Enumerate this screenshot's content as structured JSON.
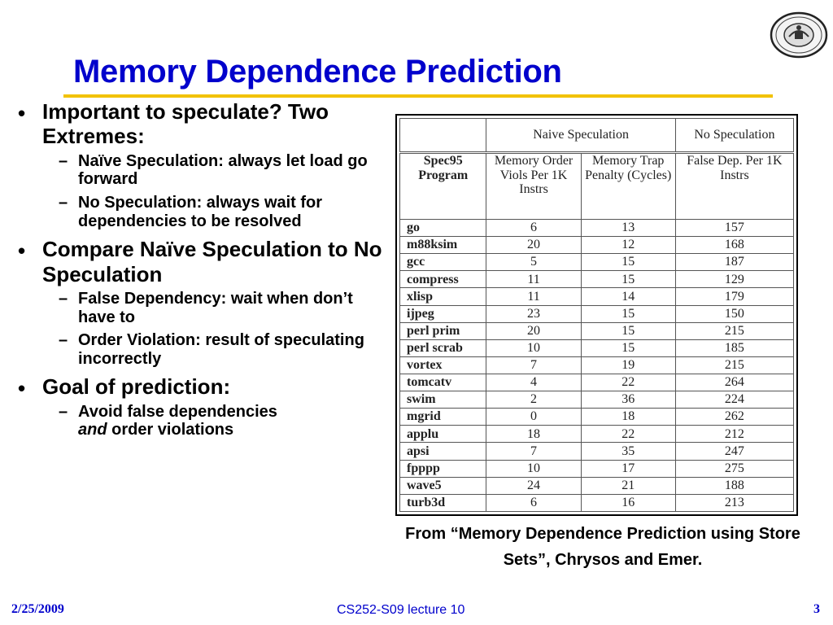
{
  "slide": {
    "title": "Memory Dependence Prediction",
    "bullets": [
      {
        "text": "Important to speculate? Two Extremes:",
        "subs": [
          {
            "text": "Naïve Speculation: always let load go forward"
          },
          {
            "text": "No Speculation: always wait for dependencies to be resolved"
          }
        ]
      },
      {
        "text": "Compare Naïve Speculation to No Speculation",
        "subs": [
          {
            "text": "False Dependency: wait when don’t have to"
          },
          {
            "text": "Order Violation: result of speculating incorrectly"
          }
        ]
      },
      {
        "text": "Goal of prediction:",
        "subs": [
          {
            "prefix": "Avoid false dependencies",
            "em": "and",
            "suffix": " order violations"
          }
        ]
      }
    ],
    "caption": "From “Memory Dependence Prediction using Store Sets”, Chrysos and Emer."
  },
  "table": {
    "group_headers": [
      "",
      "Naive Speculation",
      "No Speculation"
    ],
    "col_headers": [
      "Spec95 Program",
      "Memory Order Viols Per 1K Instrs",
      "Memory Trap Penalty (Cycles)",
      "False Dep. Per 1K Instrs"
    ],
    "rows": [
      [
        "go",
        "6",
        "13",
        "157"
      ],
      [
        "m88ksim",
        "20",
        "12",
        "168"
      ],
      [
        "gcc",
        "5",
        "15",
        "187"
      ],
      [
        "compress",
        "11",
        "15",
        "129"
      ],
      [
        "xlisp",
        "11",
        "14",
        "179"
      ],
      [
        "ijpeg",
        "23",
        "15",
        "150"
      ],
      [
        "perl prim",
        "20",
        "15",
        "215"
      ],
      [
        "perl scrab",
        "10",
        "15",
        "185"
      ],
      [
        "vortex",
        "7",
        "19",
        "215"
      ],
      [
        "tomcatv",
        "4",
        "22",
        "264"
      ],
      [
        "swim",
        "2",
        "36",
        "224"
      ],
      [
        "mgrid",
        "0",
        "18",
        "262"
      ],
      [
        "applu",
        "18",
        "22",
        "212"
      ],
      [
        "apsi",
        "7",
        "35",
        "247"
      ],
      [
        "fpppp",
        "10",
        "17",
        "275"
      ],
      [
        "wave5",
        "24",
        "21",
        "188"
      ],
      [
        "turb3d",
        "6",
        "16",
        "213"
      ]
    ]
  },
  "footer": {
    "date": "2/25/2009",
    "course": "CS252-S09 lecture 10",
    "page": "3"
  },
  "colors": {
    "title": "#0000cc",
    "rule": "#f2c200",
    "footer": "#0000cc"
  },
  "icons": {
    "seal": "university-seal-icon"
  }
}
